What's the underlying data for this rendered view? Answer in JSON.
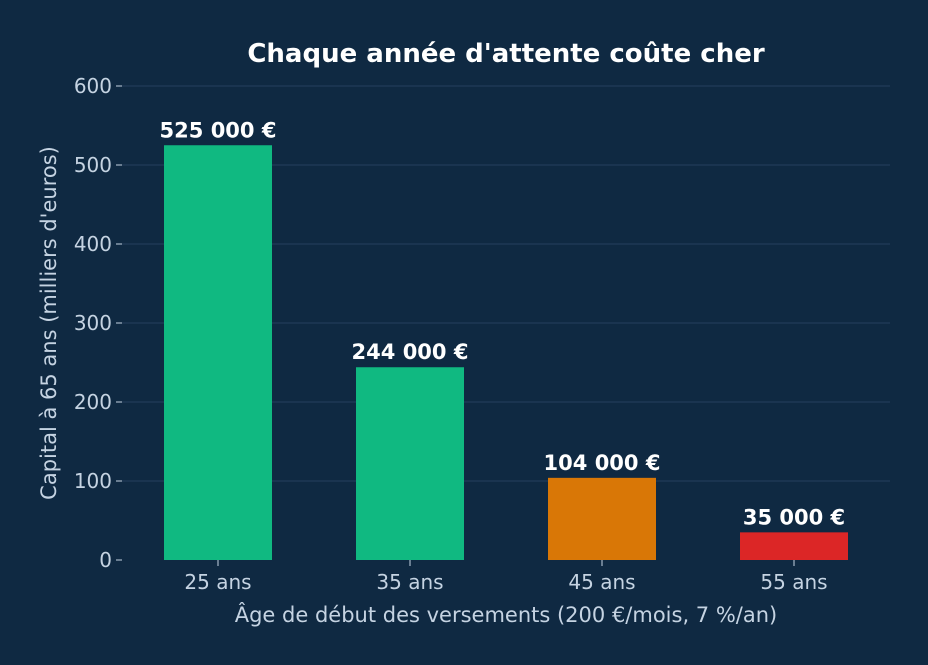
{
  "chart_data": {
    "type": "bar",
    "title": "Chaque année d'attente coûte cher",
    "xlabel": "Âge de début des versements (200 €/mois, 7 %/an)",
    "ylabel": "Capital à 65 ans (milliers d'euros)",
    "categories": [
      "25 ans",
      "35 ans",
      "45 ans",
      "55 ans"
    ],
    "values": [
      525,
      244,
      104,
      35
    ],
    "data_labels": [
      "525 000 €",
      "244 000 €",
      "104 000 €",
      "35 000 €"
    ],
    "bar_colors": [
      "#10b981",
      "#10b981",
      "#d97706",
      "#dc2626"
    ],
    "ylim": [
      0,
      600
    ],
    "yticks": [
      0,
      100,
      200,
      300,
      400,
      500,
      600
    ],
    "grid": "horizontal",
    "colors": {
      "background": "#0f2942",
      "grid": "#24405d",
      "text": "#c5d3e2",
      "title": "#ffffff",
      "data_label": "#ffffff"
    }
  }
}
